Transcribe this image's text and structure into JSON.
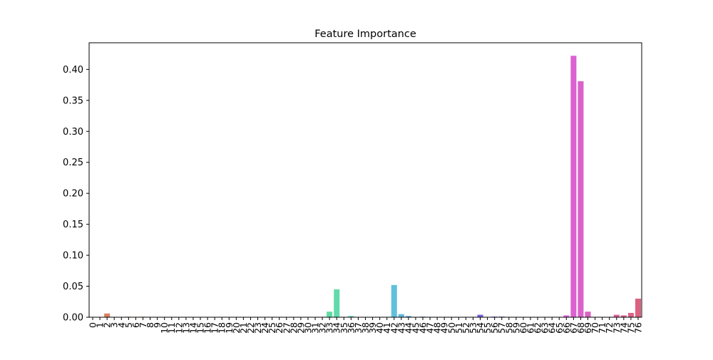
{
  "chart_data": {
    "type": "bar",
    "title": "Feature Importance",
    "xlabel": "",
    "ylabel": "",
    "ylim": [
      0,
      0.443
    ],
    "yticks": [
      "0.00",
      "0.05",
      "0.10",
      "0.15",
      "0.20",
      "0.25",
      "0.30",
      "0.35",
      "0.40"
    ],
    "grid": false,
    "legend": "none",
    "categories": [
      "0",
      "1",
      "2",
      "3",
      "4",
      "5",
      "6",
      "7",
      "8",
      "9",
      "10",
      "11",
      "12",
      "13",
      "14",
      "15",
      "16",
      "17",
      "18",
      "19",
      "20",
      "21",
      "22",
      "23",
      "24",
      "25",
      "26",
      "27",
      "28",
      "29",
      "30",
      "31",
      "32",
      "33",
      "34",
      "35",
      "36",
      "37",
      "38",
      "39",
      "40",
      "41",
      "42",
      "43",
      "44",
      "45",
      "46",
      "47",
      "48",
      "49",
      "50",
      "51",
      "52",
      "53",
      "54",
      "55",
      "56",
      "57",
      "58",
      "59",
      "60",
      "61",
      "62",
      "63",
      "64",
      "65",
      "66",
      "67",
      "68",
      "69",
      "70",
      "71",
      "72",
      "73",
      "74",
      "75",
      "76"
    ],
    "values": [
      0.0005,
      0.0005,
      0.006,
      0.0003,
      0.0003,
      0.0008,
      0.0004,
      0.0008,
      0.0004,
      0.0002,
      0.0002,
      0.0002,
      0.0002,
      0.0002,
      0.0002,
      0.0002,
      0.0006,
      0.0003,
      0.0002,
      0.0006,
      0.0004,
      0.0002,
      0.0002,
      0.0002,
      0.0002,
      0.0002,
      0.0002,
      0.0002,
      0.0002,
      0.0002,
      0.0002,
      0.0002,
      0.0002,
      0.009,
      0.045,
      0.0005,
      0.002,
      0.0003,
      0.0002,
      0.0002,
      0.0002,
      0.0002,
      0.052,
      0.005,
      0.002,
      0.0005,
      0.001,
      0.0005,
      0.0002,
      0.0002,
      0.0002,
      0.0002,
      0.0002,
      0.0002,
      0.004,
      0.0005,
      0.001,
      0.001,
      0.0005,
      0.0002,
      0.0002,
      0.0002,
      0.0002,
      0.0002,
      0.0002,
      0.0005,
      0.003,
      0.422,
      0.381,
      0.009,
      0.0005,
      0.0002,
      0.0002,
      0.004,
      0.003,
      0.007,
      0.03
    ],
    "colors": {
      "palette_start": "#e8766d",
      "axis": "#000000",
      "background": "#ffffff"
    }
  }
}
